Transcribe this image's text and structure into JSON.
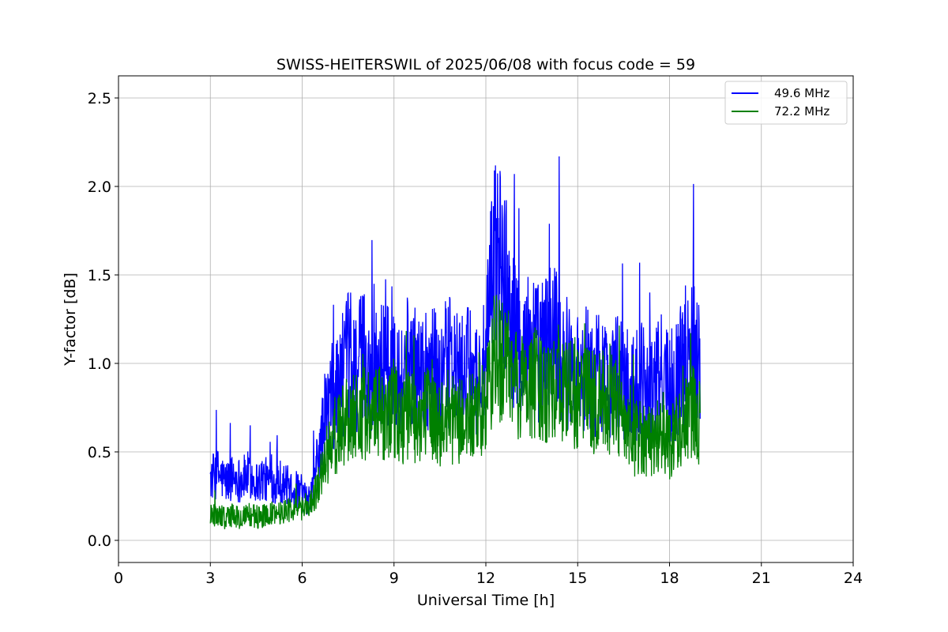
{
  "chart_data": {
    "type": "line",
    "title": "SWISS-HEITERSWIL of 2025/06/08 with focus code = 59",
    "xlabel": "Universal Time [h]",
    "ylabel": "Y-factor [dB]",
    "xlim": [
      0,
      24
    ],
    "ylim": [
      -0.125,
      2.625
    ],
    "xticks": [
      0,
      3,
      6,
      9,
      12,
      15,
      18,
      21,
      24
    ],
    "yticks": [
      0.0,
      0.5,
      1.0,
      1.5,
      2.0,
      2.5
    ],
    "xtick_labels": [
      "0",
      "3",
      "6",
      "9",
      "12",
      "15",
      "18",
      "21",
      "24"
    ],
    "ytick_labels": [
      "0.0",
      "0.5",
      "1.0",
      "1.5",
      "2.0",
      "2.5"
    ],
    "grid": true,
    "legend_position": "top-right",
    "series": [
      {
        "name": "49.6 MHz",
        "color": "#0000ff",
        "x": [
          3.0,
          3.25,
          3.5,
          3.75,
          4.0,
          4.25,
          4.5,
          4.75,
          5.0,
          5.25,
          5.5,
          5.75,
          6.0,
          6.25,
          6.5,
          6.75,
          7.0,
          7.25,
          7.5,
          7.75,
          8.0,
          8.25,
          8.5,
          8.75,
          9.0,
          9.25,
          9.5,
          9.75,
          10.0,
          10.25,
          10.5,
          10.75,
          11.0,
          11.25,
          11.5,
          11.75,
          12.0,
          12.25,
          12.5,
          12.75,
          13.0,
          13.25,
          13.5,
          13.75,
          14.0,
          14.25,
          14.5,
          14.75,
          15.0,
          15.25,
          15.5,
          15.75,
          16.0,
          16.25,
          16.5,
          16.75,
          17.0,
          17.25,
          17.5,
          17.75,
          18.0,
          18.25,
          18.5,
          18.75,
          19.0
        ],
        "y": [
          0.35,
          0.38,
          0.33,
          0.36,
          0.34,
          0.37,
          0.33,
          0.35,
          0.32,
          0.34,
          0.31,
          0.3,
          0.25,
          0.22,
          0.45,
          0.7,
          0.82,
          0.9,
          1.02,
          0.95,
          1.05,
          0.92,
          1.0,
          0.95,
          1.08,
          0.9,
          1.05,
          0.92,
          0.98,
          1.0,
          0.88,
          1.02,
          0.95,
          0.92,
          0.98,
          0.9,
          1.0,
          1.6,
          1.55,
          1.35,
          1.1,
          1.08,
          1.15,
          1.05,
          1.12,
          1.2,
          1.05,
          0.98,
          0.95,
          1.0,
          0.92,
          0.95,
          0.9,
          0.95,
          0.88,
          0.85,
          0.9,
          0.88,
          0.85,
          0.95,
          0.85,
          0.92,
          1.05,
          1.15,
          1.05
        ]
      },
      {
        "name": "72.2 MHz",
        "color": "#008000",
        "x": [
          3.0,
          3.25,
          3.5,
          3.75,
          4.0,
          4.25,
          4.5,
          4.75,
          5.0,
          5.25,
          5.5,
          5.75,
          6.0,
          6.25,
          6.5,
          6.75,
          7.0,
          7.25,
          7.5,
          7.75,
          8.0,
          8.25,
          8.5,
          8.75,
          9.0,
          9.25,
          9.5,
          9.75,
          10.0,
          10.25,
          10.5,
          10.75,
          11.0,
          11.25,
          11.5,
          11.75,
          12.0,
          12.25,
          12.5,
          12.75,
          13.0,
          13.25,
          13.5,
          13.75,
          14.0,
          14.25,
          14.5,
          14.75,
          15.0,
          15.25,
          15.5,
          15.75,
          16.0,
          16.25,
          16.5,
          16.75,
          17.0,
          17.25,
          17.5,
          17.75,
          18.0,
          18.25,
          18.5,
          18.75,
          19.0
        ],
        "y": [
          0.14,
          0.15,
          0.13,
          0.14,
          0.12,
          0.15,
          0.13,
          0.14,
          0.15,
          0.16,
          0.17,
          0.18,
          0.18,
          0.2,
          0.3,
          0.45,
          0.55,
          0.62,
          0.72,
          0.7,
          0.74,
          0.68,
          0.72,
          0.7,
          0.75,
          0.66,
          0.72,
          0.68,
          0.7,
          0.72,
          0.65,
          0.7,
          0.68,
          0.66,
          0.7,
          0.66,
          0.78,
          1.0,
          1.05,
          0.95,
          0.88,
          0.86,
          0.9,
          0.85,
          0.88,
          0.92,
          0.85,
          0.82,
          0.8,
          0.82,
          0.78,
          0.8,
          0.75,
          0.78,
          0.65,
          0.55,
          0.6,
          0.58,
          0.56,
          0.62,
          0.55,
          0.62,
          0.68,
          0.72,
          0.65
        ]
      }
    ]
  }
}
